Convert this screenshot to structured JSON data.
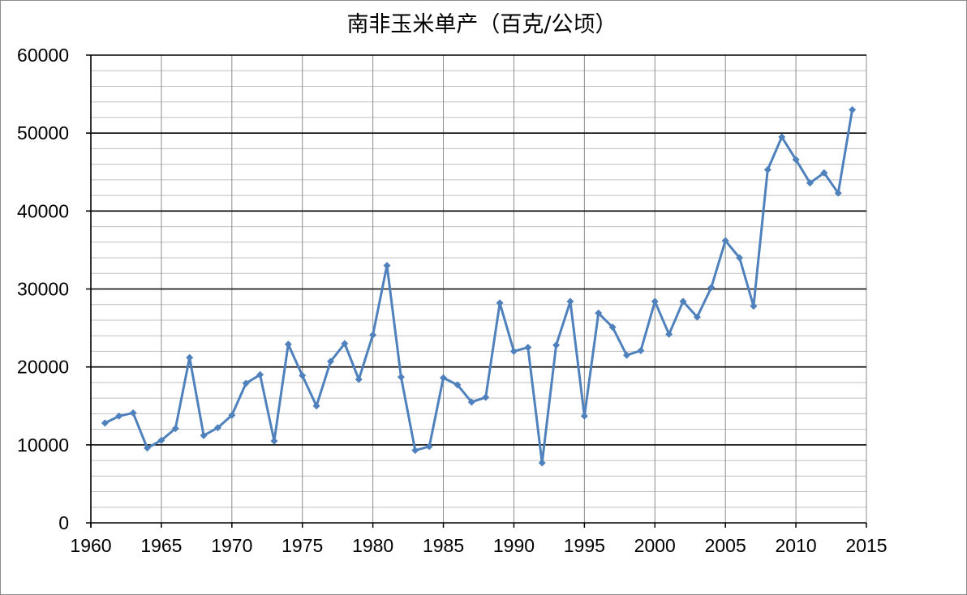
{
  "chart_data": {
    "type": "line",
    "title": "南非玉米单产（百克/公顷）",
    "xlabel": "",
    "ylabel": "",
    "xlim": [
      1960,
      2015
    ],
    "ylim": [
      0,
      60000
    ],
    "x_ticks": [
      "1960",
      "1965",
      "1970",
      "1975",
      "1980",
      "1985",
      "1990",
      "1995",
      "2000",
      "2005",
      "2010",
      "2015"
    ],
    "y_ticks": [
      "0",
      "10000",
      "20000",
      "30000",
      "40000",
      "50000",
      "60000"
    ],
    "grid": {
      "x_major": true,
      "y_major": true,
      "y_minor": true,
      "y_minor_step": 2000
    },
    "legend": "none",
    "series": [
      {
        "color": "#4f81bd",
        "marker": "diamond",
        "x": [
          1961,
          1962,
          1963,
          1964,
          1965,
          1966,
          1967,
          1968,
          1969,
          1970,
          1971,
          1972,
          1973,
          1974,
          1975,
          1976,
          1977,
          1978,
          1979,
          1980,
          1981,
          1982,
          1983,
          1984,
          1985,
          1986,
          1987,
          1988,
          1989,
          1990,
          1991,
          1992,
          1993,
          1994,
          1995,
          1996,
          1997,
          1998,
          1999,
          2000,
          2001,
          2002,
          2003,
          2004,
          2005,
          2006,
          2007,
          2008,
          2009,
          2010,
          2011,
          2012,
          2013,
          2014
        ],
        "values": [
          12800,
          13700,
          14100,
          9600,
          10600,
          12100,
          21200,
          11200,
          12200,
          13800,
          17900,
          19000,
          10500,
          22900,
          18900,
          15000,
          20700,
          23000,
          18400,
          24100,
          33000,
          18700,
          9300,
          9800,
          18600,
          17700,
          15500,
          16100,
          28200,
          22000,
          22500,
          7700,
          22800,
          28400,
          13700,
          26900,
          25100,
          21500,
          22100,
          28400,
          24200,
          28400,
          26400,
          30200,
          36200,
          34000,
          27800,
          45300,
          49500,
          46600,
          43600,
          44900,
          42300,
          53000
        ]
      }
    ]
  }
}
